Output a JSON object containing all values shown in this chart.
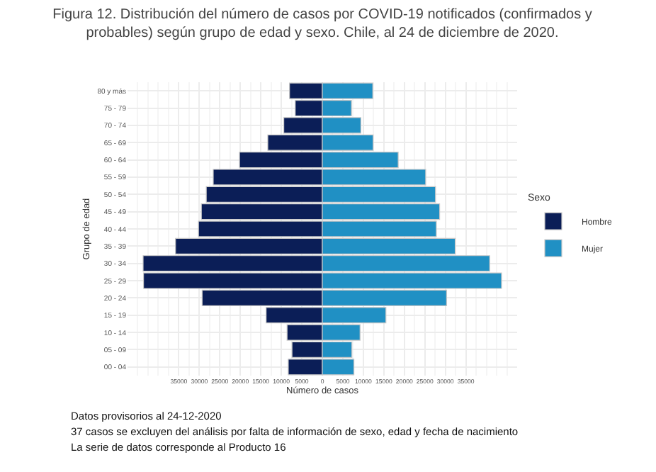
{
  "chart_data": {
    "type": "bar",
    "orientation": "horizontal",
    "title": "Figura 12. Distribución del número de casos por COVID-19 notificados (confirmados y probables) según grupo de edad y sexo. Chile, al 24 de diciembre de 2020.",
    "xlabel": "Número de casos",
    "ylabel": "Grupo de edad",
    "legend_title": "Sexo",
    "categories": [
      "80 y más",
      "75 - 79",
      "70 - 74",
      "65 - 69",
      "60 - 64",
      "55 - 59",
      "50 - 54",
      "45 - 49",
      "40 - 44",
      "35 - 39",
      "30 - 34",
      "25 - 29",
      "20 - 24",
      "15 - 19",
      "10 - 14",
      "05 - 09",
      "00 - 04"
    ],
    "series": [
      {
        "name": "Hombre",
        "color": "#0b1e57",
        "values": [
          -8000,
          -6600,
          -9400,
          -13300,
          -20200,
          -26600,
          -28300,
          -29500,
          -30200,
          -35800,
          -43700,
          -43600,
          -29300,
          -13700,
          -8600,
          -7400,
          -8300
        ]
      },
      {
        "name": "Mujer",
        "color": "#2090c4",
        "values": [
          12300,
          7100,
          9400,
          12400,
          18500,
          25200,
          27600,
          28600,
          27800,
          32400,
          40800,
          43700,
          30300,
          15500,
          9200,
          7200,
          7700
        ]
      }
    ],
    "xlim": [
      -47500,
      47500
    ],
    "xticks": [
      {
        "value": -35000,
        "label": "35000"
      },
      {
        "value": -30000,
        "label": "30000"
      },
      {
        "value": -25000,
        "label": "25000"
      },
      {
        "value": -20000,
        "label": "20000"
      },
      {
        "value": -15000,
        "label": "15000"
      },
      {
        "value": -10000,
        "label": "10000"
      },
      {
        "value": -5000,
        "label": "5000"
      },
      0,
      5000,
      10000,
      15000,
      20000,
      25000,
      30000,
      35000
    ],
    "grid": true,
    "legend": "right",
    "stacked": true,
    "annotations": [
      "Datos provisorios al 24-12-2020",
      "37 casos se excluyen del análisis por falta de información de sexo, edad y fecha de nacimiento",
      "La serie de datos corresponde al Producto 16"
    ]
  }
}
